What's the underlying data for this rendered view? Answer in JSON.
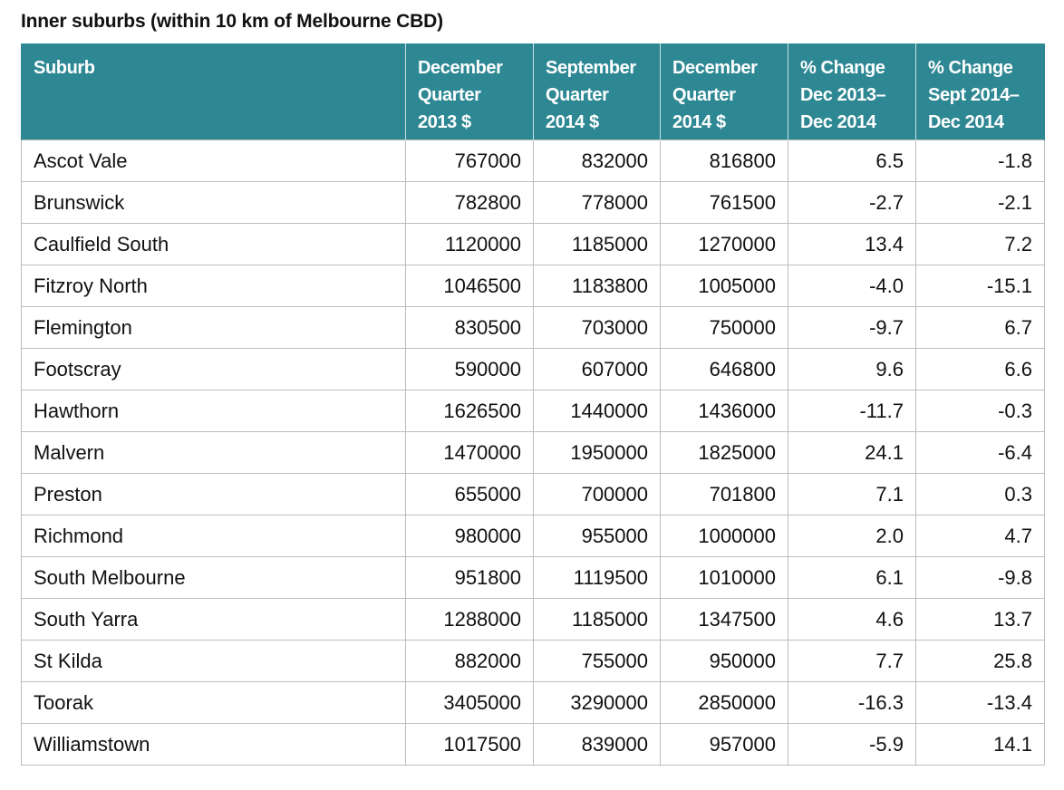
{
  "title": "Inner suburbs (within 10 km of Melbourne CBD)",
  "header": {
    "suburb": [
      "Suburb"
    ],
    "dec2013": [
      "December",
      "Quarter",
      "2013 $"
    ],
    "sep2014": [
      "September",
      "Quarter",
      "2014 $"
    ],
    "dec2014": [
      "December",
      "Quarter",
      "2014 $"
    ],
    "chg_dec": [
      "% Change",
      "Dec 2013–",
      "Dec 2014"
    ],
    "chg_sep": [
      "% Change",
      "Sept 2014–",
      "Dec 2014"
    ]
  },
  "header_color": "#2e8894",
  "rows": [
    [
      "Ascot Vale",
      "767000",
      "832000",
      "816800",
      "6.5",
      "-1.8"
    ],
    [
      "Brunswick",
      "782800",
      "778000",
      "761500",
      "-2.7",
      "-2.1"
    ],
    [
      "Caulfield South",
      "1120000",
      "1185000",
      "1270000",
      "13.4",
      "7.2"
    ],
    [
      "Fitzroy North",
      "1046500",
      "1183800",
      "1005000",
      "-4.0",
      "-15.1"
    ],
    [
      "Flemington",
      "830500",
      "703000",
      "750000",
      "-9.7",
      "6.7"
    ],
    [
      "Footscray",
      "590000",
      "607000",
      "646800",
      "9.6",
      "6.6"
    ],
    [
      "Hawthorn",
      "1626500",
      "1440000",
      "1436000",
      "-11.7",
      "-0.3"
    ],
    [
      "Malvern",
      "1470000",
      "1950000",
      "1825000",
      "24.1",
      "-6.4"
    ],
    [
      "Preston",
      "655000",
      "700000",
      "701800",
      "7.1",
      "0.3"
    ],
    [
      "Richmond",
      "980000",
      "955000",
      "1000000",
      "2.0",
      "4.7"
    ],
    [
      "South Melbourne",
      "951800",
      "1119500",
      "1010000",
      "6.1",
      "-9.8"
    ],
    [
      "South Yarra",
      "1288000",
      "1185000",
      "1347500",
      "4.6",
      "13.7"
    ],
    [
      "St Kilda",
      "882000",
      "755000",
      "950000",
      "7.7",
      "25.8"
    ],
    [
      "Toorak",
      "3405000",
      "3290000",
      "2850000",
      "-16.3",
      "-13.4"
    ],
    [
      "Williamstown",
      "1017500",
      "839000",
      "957000",
      "-5.9",
      "14.1"
    ]
  ]
}
